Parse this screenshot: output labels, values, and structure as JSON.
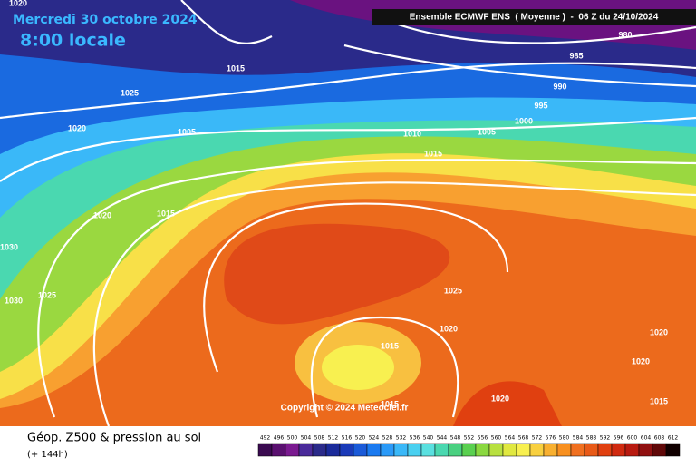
{
  "header": {
    "date": "Mercredi 30 octobre 2024",
    "time": "8:00 locale",
    "run": "Ensemble ECMWF ENS  ( Moyenne )  -  06 Z du 24/10/2024"
  },
  "isobar_labels": [
    "1020",
    "1015",
    "1025",
    "1020",
    "1005",
    "1010",
    "1005",
    "1015",
    "1000",
    "995",
    "990",
    "985",
    "980",
    "1020",
    "1015",
    "1030",
    "1030",
    "1025",
    "1025",
    "1020",
    "1015",
    "1020",
    "1020",
    "1020",
    "1015",
    "1015"
  ],
  "copyright": "Copyright © 2024 Meteociel.fr",
  "footer": {
    "title": "Géop. Z500 & pression au sol",
    "lead": "(+ 144h)"
  },
  "scale": {
    "values": [
      492,
      496,
      500,
      504,
      508,
      512,
      516,
      520,
      524,
      528,
      532,
      536,
      540,
      544,
      548,
      552,
      556,
      560,
      564,
      568,
      572,
      576,
      580,
      584,
      588,
      592,
      596,
      600,
      604,
      608,
      612
    ],
    "colors": [
      "#3a0a50",
      "#5a1070",
      "#7a1a90",
      "#4a2a9a",
      "#2a2a8a",
      "#1a2a9a",
      "#1a3ab8",
      "#1a5ad8",
      "#1a7af0",
      "#2a9af8",
      "#3ab8f8",
      "#4ad0f0",
      "#5ae0e0",
      "#4ad8b0",
      "#4ad080",
      "#5ad050",
      "#8ad840",
      "#b8e040",
      "#e0e840",
      "#f8f050",
      "#f8d040",
      "#f8b030",
      "#f89020",
      "#f07020",
      "#e85a18",
      "#e04010",
      "#d02a10",
      "#b81a10",
      "#901010",
      "#600808",
      "#100000"
    ]
  }
}
